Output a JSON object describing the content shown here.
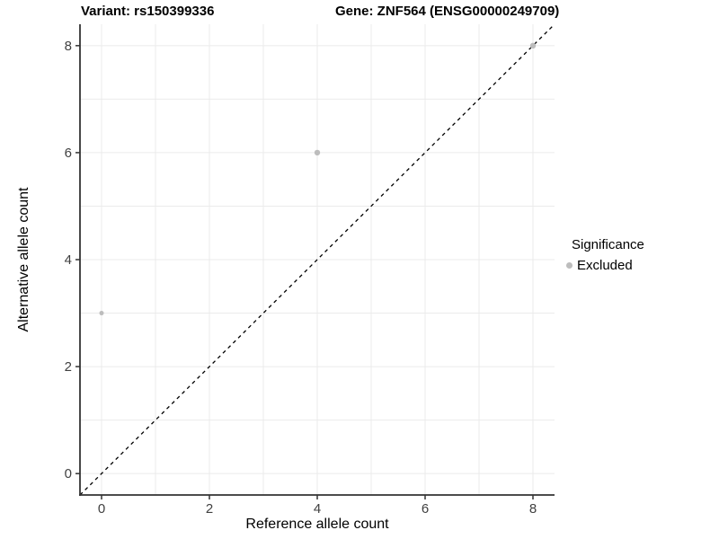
{
  "chart_data": {
    "type": "scatter",
    "title_left": "Variant: rs150399336",
    "title_right": "Gene: ZNF564 (ENSG00000249709)",
    "xlabel": "Reference allele count",
    "ylabel": "Alternative allele count",
    "xlim": [
      -0.4,
      8.4
    ],
    "ylim": [
      -0.4,
      8.4
    ],
    "x_ticks": [
      0,
      2,
      4,
      6,
      8
    ],
    "y_ticks": [
      0,
      2,
      4,
      6,
      8
    ],
    "x_grid": [
      0,
      1,
      2,
      3,
      4,
      5,
      6,
      7,
      8
    ],
    "y_grid": [
      0,
      1,
      2,
      3,
      4,
      5,
      6,
      7,
      8
    ],
    "grid": true,
    "reference_line": {
      "equation": "y = x",
      "style": "dashed",
      "color": "#000000"
    },
    "series": [
      {
        "name": "Excluded",
        "color": "#bdbdbd",
        "points": [
          {
            "x": 0,
            "y": 3,
            "r": 2.5
          },
          {
            "x": 4,
            "y": 6,
            "r": 3.2
          },
          {
            "x": 8,
            "y": 8,
            "r": 3.2
          }
        ]
      }
    ],
    "legend": {
      "title": "Significance",
      "position": "right",
      "items": [
        {
          "label": "Excluded",
          "color": "#bdbdbd"
        }
      ]
    },
    "colors": {
      "grid": "#ebebeb",
      "axis_line": "#333333",
      "tick_mark": "#333333",
      "tick_label": "#404040",
      "background": "#ffffff"
    }
  }
}
